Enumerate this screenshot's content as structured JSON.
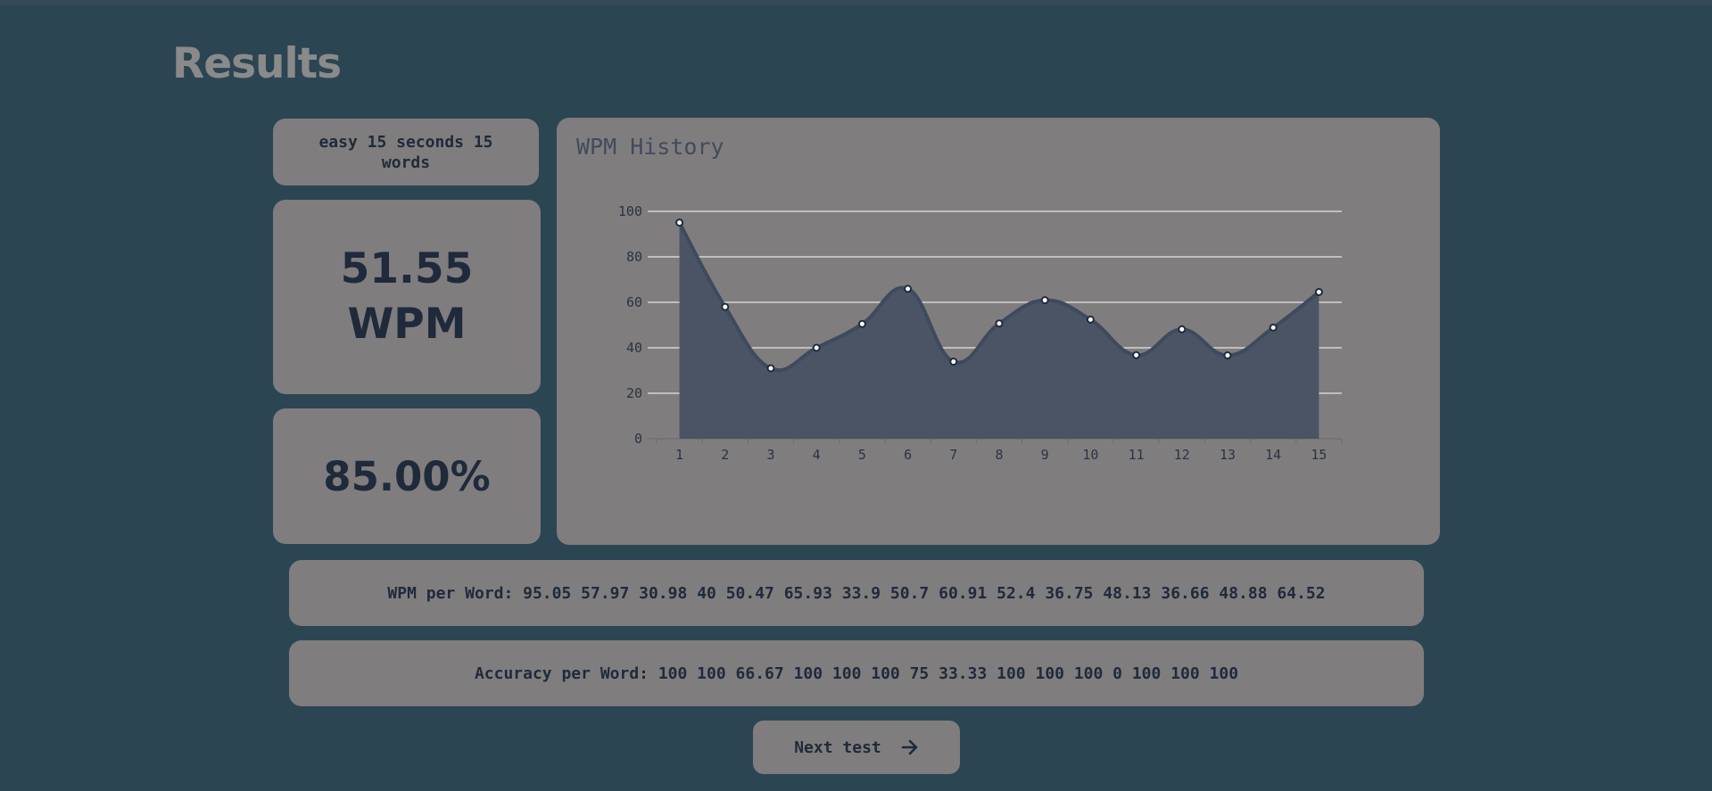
{
  "page": {
    "title": "Results"
  },
  "summary": {
    "mode": "easy 15 seconds 15 words",
    "wpm_value": "51.55",
    "wpm_unit": "WPM",
    "accuracy": "85.00%"
  },
  "chart_title": "WPM History",
  "chart_data": {
    "type": "area",
    "title": "WPM History",
    "x": [
      1,
      2,
      3,
      4,
      5,
      6,
      7,
      8,
      9,
      10,
      11,
      12,
      13,
      14,
      15
    ],
    "series": [
      {
        "values": [
          95.05,
          57.97,
          30.98,
          40,
          50.47,
          65.93,
          33.9,
          50.7,
          60.91,
          52.4,
          36.75,
          48.13,
          36.66,
          48.88,
          64.52
        ]
      }
    ],
    "ylim": [
      0,
      100
    ],
    "yticks": [
      0,
      20,
      40,
      60,
      80,
      100
    ],
    "grid": true,
    "colors": {
      "line": "#3e4a5e",
      "fill": "#4b5464",
      "grid": "#e6e6e6"
    }
  },
  "details": {
    "wpm_per_word": "WPM per Word: 95.05 57.97 30.98 40 50.47 65.93 33.9 50.7 60.91 52.4 36.75 48.13 36.66 48.88 64.52",
    "accuracy_per_word": "Accuracy per Word: 100 100 66.67 100 100 100 75 33.33 100 100 100 0 100 100 100"
  },
  "actions": {
    "next_label": "Next test",
    "next_icon": "arrow-right-icon"
  }
}
